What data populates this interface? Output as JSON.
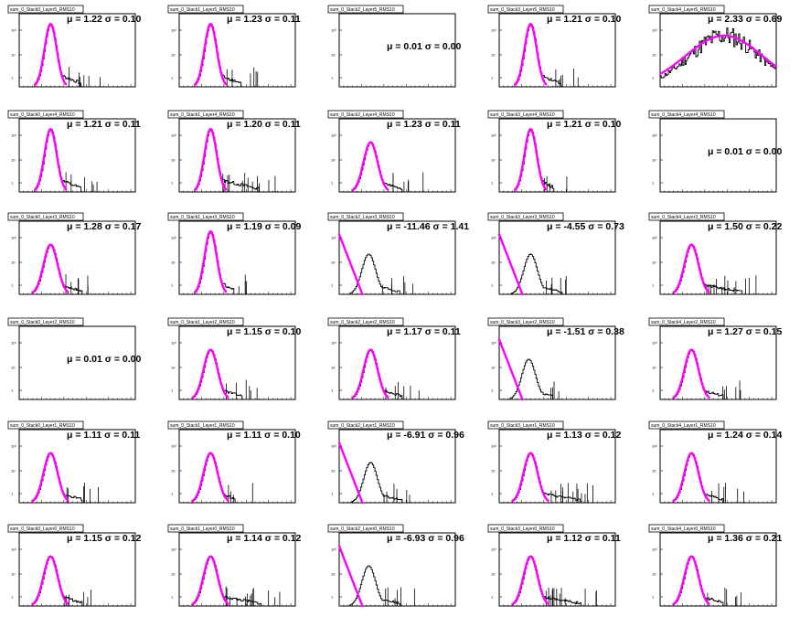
{
  "colors": {
    "fit": "#ff00ff",
    "histogram": "#000000",
    "axis": "#000000",
    "title_box": "#ffffff"
  },
  "y_tick_labels": [
    "1",
    "10",
    "10²"
  ],
  "chart_data": [
    {
      "type": "histogram",
      "title": "sum_0_Stack0_Layer5_RMS10",
      "mu": "1.22",
      "sigma": "0.10",
      "yscale": "log",
      "fit": "gaussian",
      "fit_center": 1.22,
      "fit_width": 0.1,
      "peak": "high",
      "tail": "medium"
    },
    {
      "type": "histogram",
      "title": "sum_0_Stack1_Layer5_RMS10",
      "mu": "1.23",
      "sigma": "0.11",
      "yscale": "log",
      "fit": "gaussian",
      "fit_center": 1.23,
      "fit_width": 0.11,
      "peak": "high",
      "tail": "medium"
    },
    {
      "type": "histogram",
      "title": "sum_0_Stack2_Layer5_RMS10",
      "mu": "0.01",
      "sigma": "0.00",
      "yscale": "log",
      "fit": "none",
      "empty": true
    },
    {
      "type": "histogram",
      "title": "sum_0_Stack3_Layer5_RMS10",
      "mu": "1.21",
      "sigma": "0.10",
      "yscale": "log",
      "fit": "gaussian",
      "fit_center": 1.21,
      "fit_width": 0.1,
      "peak": "high",
      "tail": "medium"
    },
    {
      "type": "histogram",
      "title": "sum_0_Stack4_Layer5_RMS10",
      "mu": "2.33",
      "sigma": "0.69",
      "yscale": "log",
      "fit": "gaussian",
      "fit_center": 2.33,
      "fit_width": 0.69,
      "peak": "broad",
      "tail": "broad"
    },
    {
      "type": "histogram",
      "title": "sum_0_Stack0_Layer4_RMS10",
      "mu": "1.21",
      "sigma": "0.11",
      "yscale": "log",
      "fit": "gaussian",
      "fit_center": 1.21,
      "fit_width": 0.11,
      "peak": "high",
      "tail": "medium"
    },
    {
      "type": "histogram",
      "title": "sum_0_Stack1_Layer4_RMS10",
      "mu": "1.20",
      "sigma": "0.11",
      "yscale": "log",
      "fit": "gaussian",
      "fit_center": 1.2,
      "fit_width": 0.11,
      "peak": "high",
      "tail": "long"
    },
    {
      "type": "histogram",
      "title": "sum_0_Stack2_Layer4_RMS10",
      "mu": "1.23",
      "sigma": "0.11",
      "yscale": "log",
      "fit": "gaussian",
      "fit_center": 1.23,
      "fit_width": 0.11,
      "peak": "medium",
      "tail": "medium"
    },
    {
      "type": "histogram",
      "title": "sum_0_Stack3_Layer4_RMS10",
      "mu": "1.21",
      "sigma": "0.10",
      "yscale": "log",
      "fit": "gaussian",
      "fit_center": 1.21,
      "fit_width": 0.1,
      "peak": "high",
      "tail": "short"
    },
    {
      "type": "histogram",
      "title": "sum_0_Stack4_Layer4_RMS10",
      "mu": "0.01",
      "sigma": "0.00",
      "yscale": "log",
      "fit": "none",
      "empty": true
    },
    {
      "type": "histogram",
      "title": "sum_0_Stack0_Layer3_RMS10",
      "mu": "1.28",
      "sigma": "0.17",
      "yscale": "log",
      "fit": "gaussian",
      "fit_center": 1.28,
      "fit_width": 0.17,
      "peak": "medium",
      "tail": "medium"
    },
    {
      "type": "histogram",
      "title": "sum_0_Stack1_Layer3_RMS10",
      "mu": "1.19",
      "sigma": "0.09",
      "yscale": "log",
      "fit": "gaussian",
      "fit_center": 1.19,
      "fit_width": 0.09,
      "peak": "high",
      "tail": "short"
    },
    {
      "type": "histogram",
      "title": "sum_0_Stack2_Layer3_RMS10",
      "mu": "-11.46",
      "sigma": "1.41",
      "yscale": "log",
      "fit": "falling",
      "peak": "offset",
      "tail": "medium"
    },
    {
      "type": "histogram",
      "title": "sum_0_Stack3_Layer3_RMS10",
      "mu": "-4.55",
      "sigma": "0.73",
      "yscale": "log",
      "fit": "falling",
      "peak": "offset",
      "tail": "medium"
    },
    {
      "type": "histogram",
      "title": "sum_0_Stack4_Layer3_RMS10",
      "mu": "1.50",
      "sigma": "0.22",
      "yscale": "log",
      "fit": "gaussian",
      "fit_center": 1.5,
      "fit_width": 0.22,
      "peak": "medium",
      "tail": "long"
    },
    {
      "type": "histogram",
      "title": "sum_0_Stack0_Layer2_RMS10",
      "mu": "0.01",
      "sigma": "0.00",
      "yscale": "log",
      "fit": "none",
      "empty": true
    },
    {
      "type": "histogram",
      "title": "sum_0_Stack1_Layer2_RMS10",
      "mu": "1.15",
      "sigma": "0.10",
      "yscale": "log",
      "fit": "gaussian",
      "fit_center": 1.15,
      "fit_width": 0.1,
      "peak": "medium",
      "tail": "medium"
    },
    {
      "type": "histogram",
      "title": "sum_0_Stack2_Layer2_RMS10",
      "mu": "1.17",
      "sigma": "0.11",
      "yscale": "log",
      "fit": "gaussian",
      "fit_center": 1.17,
      "fit_width": 0.11,
      "peak": "medium",
      "tail": "medium"
    },
    {
      "type": "histogram",
      "title": "sum_0_Stack3_Layer2_RMS10",
      "mu": "-1.51",
      "sigma": "0.38",
      "yscale": "log",
      "fit": "falling",
      "peak": "offset",
      "tail": "short"
    },
    {
      "type": "histogram",
      "title": "sum_0_Stack4_Layer2_RMS10",
      "mu": "1.27",
      "sigma": "0.15",
      "yscale": "log",
      "fit": "gaussian",
      "fit_center": 1.27,
      "fit_width": 0.15,
      "peak": "medium",
      "tail": "medium"
    },
    {
      "type": "histogram",
      "title": "sum_0_Stack0_Layer1_RMS10",
      "mu": "1.11",
      "sigma": "0.11",
      "yscale": "log",
      "fit": "gaussian",
      "fit_center": 1.11,
      "fit_width": 0.11,
      "peak": "medium",
      "tail": "medium"
    },
    {
      "type": "histogram",
      "title": "sum_0_Stack1_Layer1_RMS10",
      "mu": "1.11",
      "sigma": "0.10",
      "yscale": "log",
      "fit": "gaussian",
      "fit_center": 1.11,
      "fit_width": 0.1,
      "peak": "medium",
      "tail": "short"
    },
    {
      "type": "histogram",
      "title": "sum_0_Stack2_Layer1_RMS10",
      "mu": "-6.91",
      "sigma": "0.96",
      "yscale": "log",
      "fit": "falling",
      "peak": "offset",
      "tail": "medium"
    },
    {
      "type": "histogram",
      "title": "sum_0_Stack3_Layer1_RMS10",
      "mu": "1.13",
      "sigma": "0.12",
      "yscale": "log",
      "fit": "gaussian",
      "fit_center": 1.13,
      "fit_width": 0.12,
      "peak": "medium",
      "tail": "long"
    },
    {
      "type": "histogram",
      "title": "sum_0_Stack4_Layer1_RMS10",
      "mu": "1.24",
      "sigma": "0.14",
      "yscale": "log",
      "fit": "gaussian",
      "fit_center": 1.24,
      "fit_width": 0.14,
      "peak": "medium",
      "tail": "medium"
    },
    {
      "type": "histogram",
      "title": "sum_0_Stack0_Layer0_RMS10",
      "mu": "1.15",
      "sigma": "0.12",
      "yscale": "log",
      "fit": "gaussian",
      "fit_center": 1.15,
      "fit_width": 0.12,
      "peak": "medium",
      "tail": "medium"
    },
    {
      "type": "histogram",
      "title": "sum_0_Stack1_Layer0_RMS10",
      "mu": "1.14",
      "sigma": "0.12",
      "yscale": "log",
      "fit": "gaussian",
      "fit_center": 1.14,
      "fit_width": 0.12,
      "peak": "medium",
      "tail": "long"
    },
    {
      "type": "histogram",
      "title": "sum_0_Stack2_Layer0_RMS10",
      "mu": "-6.93",
      "sigma": "0.96",
      "yscale": "log",
      "fit": "falling",
      "peak": "offset",
      "tail": "medium"
    },
    {
      "type": "histogram",
      "title": "sum_0_Stack3_Layer0_RMS10",
      "mu": "1.12",
      "sigma": "0.11",
      "yscale": "log",
      "fit": "gaussian",
      "fit_center": 1.12,
      "fit_width": 0.11,
      "peak": "medium",
      "tail": "long"
    },
    {
      "type": "histogram",
      "title": "sum_0_Stack4_Layer0_RMS10",
      "mu": "1.36",
      "sigma": "0.21",
      "yscale": "log",
      "fit": "gaussian",
      "fit_center": 1.36,
      "fit_width": 0.21,
      "peak": "medium",
      "tail": "medium"
    }
  ]
}
